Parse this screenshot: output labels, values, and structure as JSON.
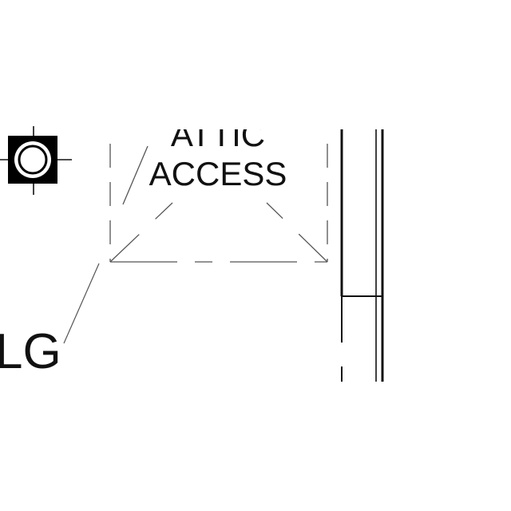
{
  "labels": {
    "attic_line1": "ATTIC",
    "attic_line2": "ACCESS",
    "edge_fragment": "LG"
  },
  "colors": {
    "background": "#ffffff",
    "ink": "#111111",
    "dash": "#555555",
    "fixture_fill": "#000000"
  },
  "symbols": {
    "fixture": "ceiling-light-fixture-icon"
  }
}
